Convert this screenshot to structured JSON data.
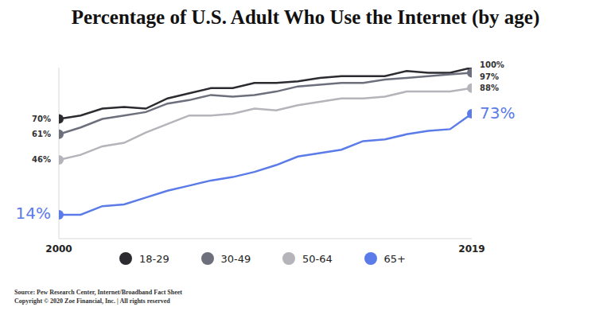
{
  "chart_data": {
    "type": "line",
    "title": "Percentage of U.S. Adult Who Use the Internet (by age)",
    "x": [
      2000,
      2001,
      2002,
      2003,
      2004,
      2005,
      2006,
      2007,
      2008,
      2009,
      2010,
      2011,
      2012,
      2013,
      2014,
      2015,
      2016,
      2017,
      2018,
      2019
    ],
    "series": [
      {
        "name": "18-29",
        "color": "#2b2b30",
        "values": [
          70,
          72,
          76,
          77,
          76,
          82,
          85,
          88,
          88,
          91,
          91,
          92,
          94,
          95,
          95,
          95,
          98,
          97,
          97,
          100
        ],
        "value_labels": [
          "70%",
          null,
          null,
          null,
          null,
          null,
          null,
          null,
          null,
          null,
          null,
          null,
          null,
          null,
          null,
          null,
          null,
          null,
          null,
          "100%"
        ]
      },
      {
        "name": "30-49",
        "color": "#6d707c",
        "values": [
          61,
          65,
          70,
          72,
          74,
          79,
          81,
          84,
          83,
          84,
          86,
          89,
          90,
          91,
          91,
          93,
          94,
          95,
          96,
          97
        ],
        "value_labels": [
          "61%",
          null,
          null,
          null,
          null,
          null,
          null,
          null,
          null,
          null,
          null,
          null,
          null,
          null,
          null,
          null,
          null,
          null,
          null,
          "97%"
        ]
      },
      {
        "name": "50-64",
        "color": "#b4b4ba",
        "values": [
          46,
          49,
          54,
          56,
          62,
          67,
          72,
          72,
          73,
          76,
          75,
          78,
          80,
          82,
          82,
          83,
          86,
          86,
          86,
          88
        ],
        "value_labels": [
          "46%",
          null,
          null,
          null,
          null,
          null,
          null,
          null,
          null,
          null,
          null,
          null,
          null,
          null,
          null,
          null,
          null,
          null,
          null,
          "88%"
        ]
      },
      {
        "name": "65+",
        "color": "#5b7be8",
        "values": [
          14,
          14,
          19,
          20,
          24,
          28,
          31,
          34,
          36,
          39,
          43,
          48,
          50,
          52,
          57,
          58,
          61,
          63,
          64,
          73
        ],
        "value_labels": [
          "14%",
          null,
          null,
          null,
          null,
          null,
          null,
          null,
          null,
          null,
          null,
          null,
          null,
          null,
          null,
          null,
          null,
          null,
          null,
          "73%"
        ]
      }
    ],
    "xlim": [
      2000,
      2019
    ],
    "xticks": [
      2000,
      2019
    ],
    "ylim": [
      0,
      100
    ],
    "yticks": [],
    "tick_labels": "x",
    "data_labels": true,
    "legend": "bottom",
    "source": "Source: Pew Research Center, Internet/Broadband Fact Sheet",
    "copyright": "Copyright © 2020 Zoe Financial, Inc. | All rights reserved"
  }
}
